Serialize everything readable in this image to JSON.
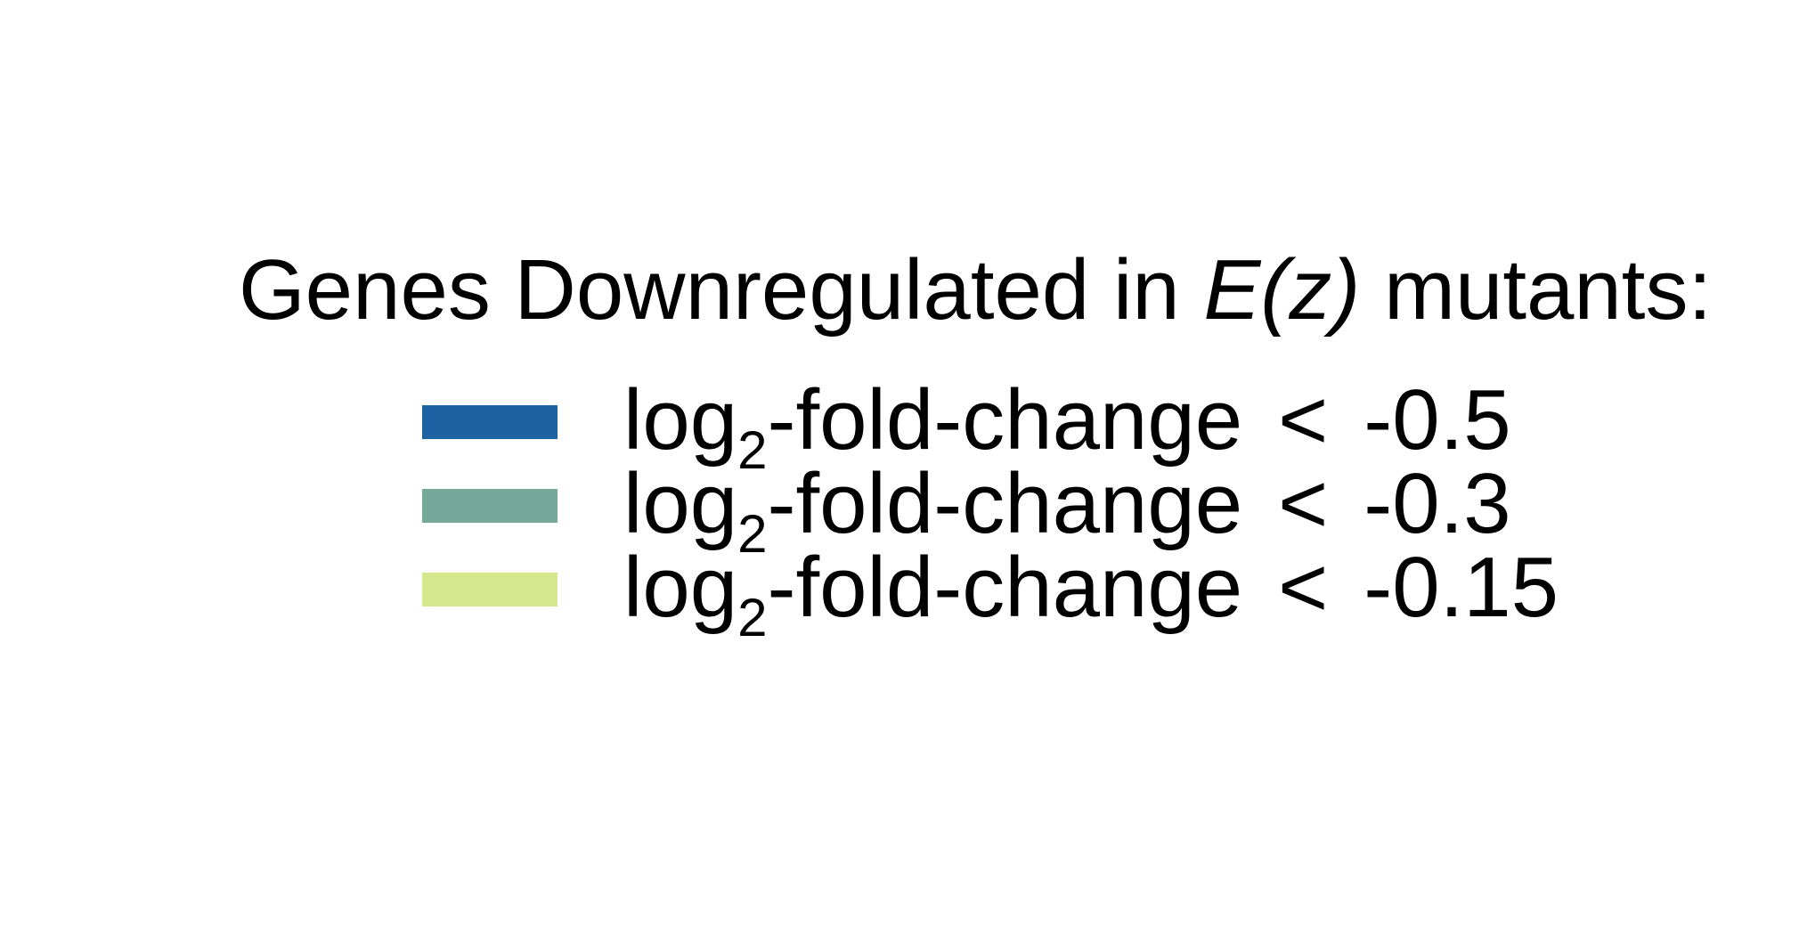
{
  "chart_data": {
    "type": "legend",
    "title": {
      "prefix": "Genes Downregulated in ",
      "italic": "E(z)",
      "suffix": " mutants:"
    },
    "entries": [
      {
        "label": {
          "log": "log",
          "base": "2",
          "rest": "-fold-change",
          "op": "<",
          "value": "-0.5"
        },
        "threshold": -0.5,
        "color": "#1d63a3"
      },
      {
        "label": {
          "log": "log",
          "base": "2",
          "rest": "-fold-change",
          "op": "<",
          "value": "-0.3"
        },
        "threshold": -0.3,
        "color": "#74a898"
      },
      {
        "label": {
          "log": "log",
          "base": "2",
          "rest": "-fold-change",
          "op": "<",
          "value": "-0.15"
        },
        "threshold": -0.15,
        "color": "#d6e88e"
      }
    ]
  }
}
